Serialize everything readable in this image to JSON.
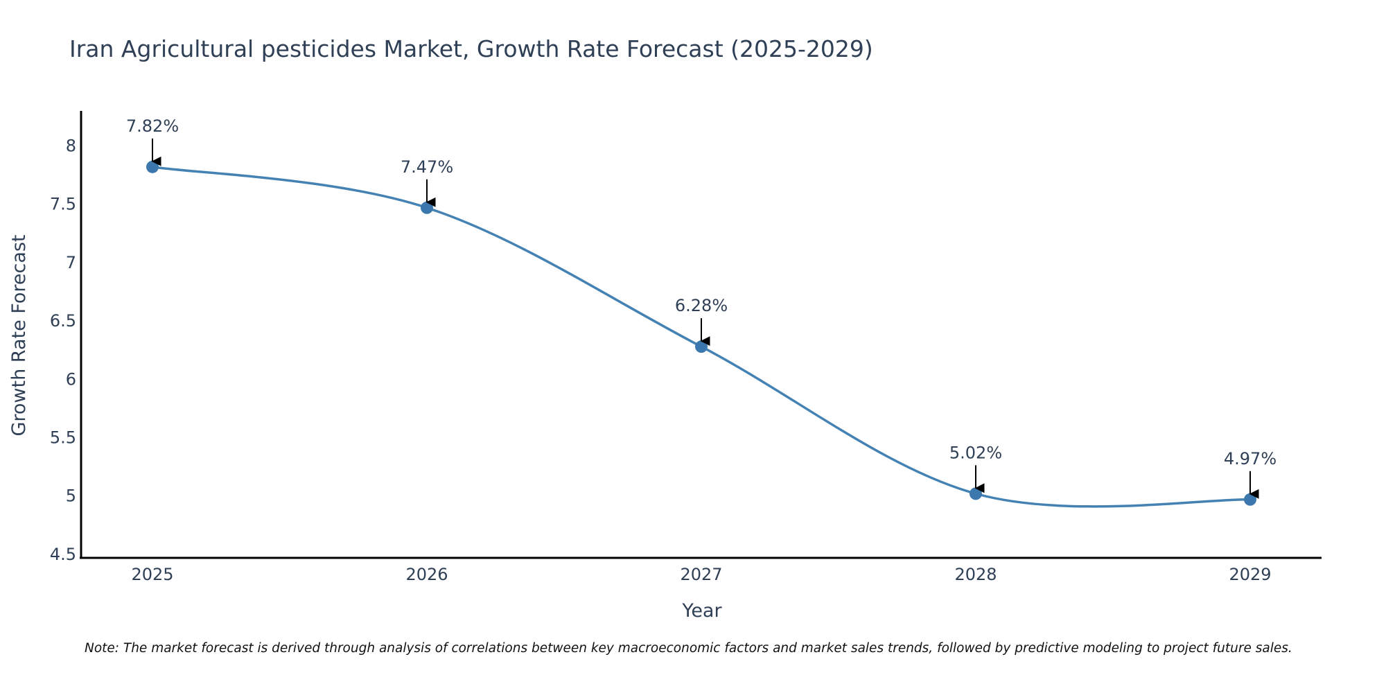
{
  "chart_data": {
    "type": "line",
    "title": "Iran Agricultural pesticides Market, Growth Rate Forecast (2025-2029)",
    "xlabel": "Year",
    "ylabel": "Growth Rate Forecast",
    "categories": [
      "2025",
      "2026",
      "2027",
      "2028",
      "2029"
    ],
    "values": [
      7.82,
      7.47,
      6.28,
      5.02,
      4.97
    ],
    "data_labels": [
      "7.82%",
      "7.47%",
      "6.28%",
      "5.02%",
      "4.97%"
    ],
    "ylim": [
      4.47,
      8.3
    ],
    "y_ticks": [
      4.5,
      5,
      5.5,
      6,
      6.5,
      7,
      7.5,
      8
    ],
    "y_tick_labels": [
      "4.5",
      "5",
      "5.5",
      "6",
      "6.5",
      "7",
      "7.5",
      "8"
    ],
    "grid": false,
    "line_color": "#4582b4",
    "marker_color": "#3c78ad",
    "text_color": "#2f3f55",
    "axis_color": "#000000",
    "note": "Note: The market forecast is derived through analysis of correlations between key macroeconomic factors and market sales trends, followed by predictive modeling to project future sales."
  }
}
